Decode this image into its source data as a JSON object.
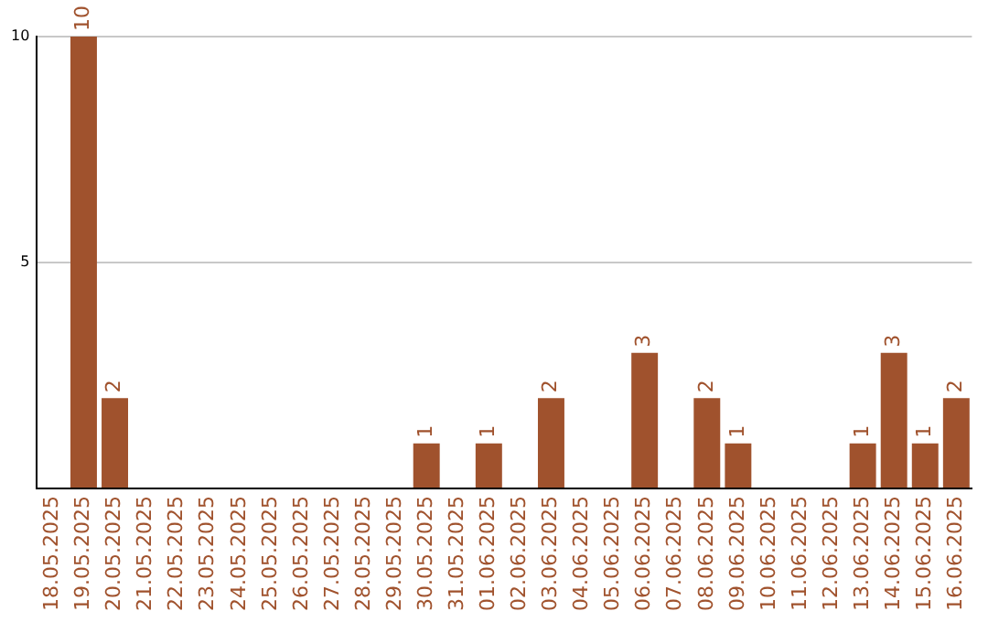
{
  "chart_data": {
    "type": "bar",
    "categories": [
      "18.05.2025",
      "19.05.2025",
      "20.05.2025",
      "21.05.2025",
      "22.05.2025",
      "23.05.2025",
      "24.05.2025",
      "25.05.2025",
      "26.05.2025",
      "27.05.2025",
      "28.05.2025",
      "29.05.2025",
      "30.05.2025",
      "31.05.2025",
      "01.06.2025",
      "02.06.2025",
      "03.06.2025",
      "04.06.2025",
      "05.06.2025",
      "06.06.2025",
      "07.06.2025",
      "08.06.2025",
      "09.06.2025",
      "10.06.2025",
      "11.06.2025",
      "12.06.2025",
      "13.06.2025",
      "14.06.2025",
      "15.06.2025",
      "16.06.2025"
    ],
    "values": [
      0,
      10,
      2,
      0,
      0,
      0,
      0,
      0,
      0,
      0,
      0,
      0,
      1,
      0,
      1,
      0,
      2,
      0,
      0,
      3,
      0,
      2,
      1,
      0,
      0,
      0,
      1,
      3,
      1,
      2
    ],
    "value_labels": [
      null,
      "10",
      "2",
      null,
      null,
      null,
      null,
      null,
      null,
      null,
      null,
      null,
      "1",
      null,
      "1",
      null,
      "2",
      null,
      null,
      "3",
      null,
      "2",
      "1",
      null,
      null,
      null,
      "1",
      "3",
      "1",
      "2"
    ],
    "color": "#a0522d",
    "ylim": [
      0,
      10
    ],
    "yticks": [
      {
        "value": 0,
        "label": null
      },
      5,
      10
    ],
    "grid": "y"
  }
}
